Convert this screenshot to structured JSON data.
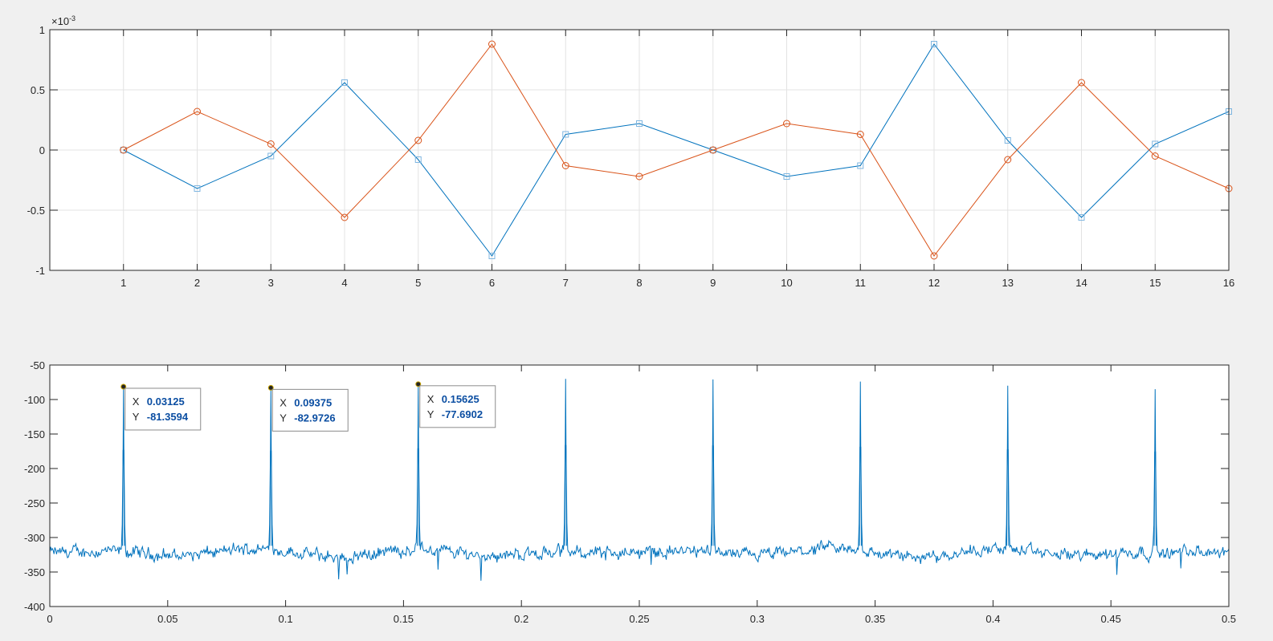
{
  "chart_data": [
    {
      "type": "line",
      "exponent_label": "×10",
      "exponent_power": "-3",
      "xlim": [
        0,
        16
      ],
      "ylim": [
        -1,
        1
      ],
      "xticks": [
        1,
        2,
        3,
        4,
        5,
        6,
        7,
        8,
        9,
        10,
        11,
        12,
        13,
        14,
        15,
        16
      ],
      "yticks": [
        1,
        0.5,
        0,
        -0.5,
        -1
      ],
      "ytick_labels": [
        "1",
        "0.5",
        "0",
        "-0.5",
        "-1"
      ],
      "grid": true,
      "series": [
        {
          "color": "#0072bd",
          "marker": "square",
          "x": [
            1,
            2,
            3,
            4,
            5,
            6,
            7,
            8,
            9,
            10,
            11,
            12,
            13,
            14,
            15,
            16
          ],
          "values": [
            0,
            -0.32,
            -0.05,
            0.56,
            -0.08,
            -0.88,
            0.13,
            0.22,
            0,
            -0.22,
            -0.13,
            0.88,
            0.08,
            -0.56,
            0.05,
            0.32
          ]
        },
        {
          "color": "#d95319",
          "marker": "circle",
          "x": [
            1,
            2,
            3,
            4,
            5,
            6,
            7,
            8,
            9,
            10,
            11,
            12,
            13,
            14,
            15,
            16
          ],
          "values": [
            0,
            0.32,
            0.05,
            -0.56,
            0.08,
            0.88,
            -0.13,
            -0.22,
            0,
            0.22,
            0.13,
            -0.88,
            -0.08,
            0.56,
            -0.05,
            -0.32
          ]
        }
      ]
    },
    {
      "type": "line",
      "xlim": [
        0,
        0.5
      ],
      "ylim": [
        -400,
        -50
      ],
      "xticks": [
        0,
        0.05,
        0.1,
        0.15,
        0.2,
        0.25,
        0.3,
        0.35,
        0.4,
        0.45,
        0.5
      ],
      "xtick_labels": [
        "0",
        "0.05",
        "0.1",
        "0.15",
        "0.2",
        "0.25",
        "0.3",
        "0.35",
        "0.4",
        "0.45",
        "0.5"
      ],
      "yticks": [
        -50,
        -100,
        -150,
        -200,
        -250,
        -300,
        -350,
        -400
      ],
      "grid": false,
      "color": "#0072bd",
      "noise_floor": -322,
      "peaks": [
        {
          "x": 0.03125,
          "y": -81.3594
        },
        {
          "x": 0.09375,
          "y": -82.9726
        },
        {
          "x": 0.15625,
          "y": -77.6902
        },
        {
          "x": 0.21875,
          "y": -70
        },
        {
          "x": 0.28125,
          "y": -71
        },
        {
          "x": 0.34375,
          "y": -74
        },
        {
          "x": 0.40625,
          "y": -80
        },
        {
          "x": 0.46875,
          "y": -85
        }
      ],
      "datatips": [
        {
          "x_label": "X",
          "x_value": "0.03125",
          "y_label": "Y",
          "y_value": "-81.3594",
          "x": 0.03125,
          "y": -81.3594
        },
        {
          "x_label": "X",
          "x_value": "0.09375",
          "y_label": "Y",
          "y_value": "-82.9726",
          "x": 0.09375,
          "y": -82.9726
        },
        {
          "x_label": "X",
          "x_value": "0.15625",
          "y_label": "Y",
          "y_value": "-77.6902",
          "x": 0.15625,
          "y": -77.6902
        }
      ]
    }
  ]
}
